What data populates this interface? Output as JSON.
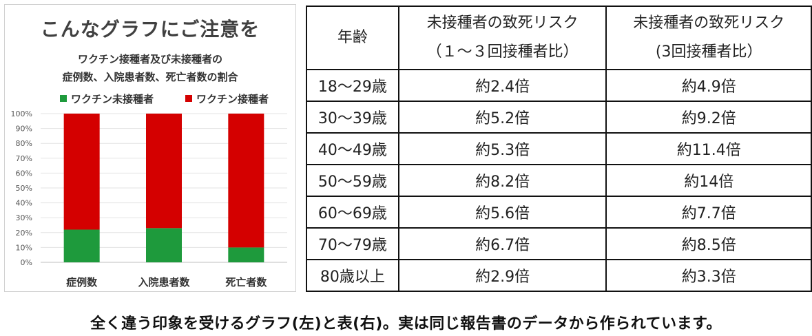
{
  "chart_data": {
    "type": "bar",
    "stacked": true,
    "title": "こんなグラフにご注意を",
    "subtitle_line1": "ワクチン接種者及び未接種者の",
    "subtitle_line2": "症例数、入院患者数、死亡者数の割合",
    "categories": [
      "症例数",
      "入院患者数",
      "死亡者数"
    ],
    "series": [
      {
        "name": "ワクチン未接種者",
        "color": "#1e9a3c",
        "values": [
          22,
          23,
          10
        ]
      },
      {
        "name": "ワクチン接種者",
        "color": "#d40000",
        "values": [
          78,
          77,
          90
        ]
      }
    ],
    "ylim": [
      0,
      100
    ],
    "y_ticks": [
      "0%",
      "10%",
      "20%",
      "30%",
      "40%",
      "50%",
      "60%",
      "70%",
      "80%",
      "90%",
      "100%"
    ],
    "grid": true,
    "legend_position": "top"
  },
  "table": {
    "headers": {
      "age": "年齢",
      "col_a_line1": "未接種者の致死リスク",
      "col_a_line2": "（１～３回接種者比）",
      "col_b_line1": "未接種者の致死リスク",
      "col_b_line2": "(3回接種者比）"
    },
    "rows": [
      {
        "age": "18～29歳",
        "a": "約2.4倍",
        "b": "約4.9倍"
      },
      {
        "age": "30～39歳",
        "a": "約5.2倍",
        "b": "約9.2倍"
      },
      {
        "age": "40～49歳",
        "a": "約5.3倍",
        "b": "約11.4倍"
      },
      {
        "age": "50～59歳",
        "a": "約8.2倍",
        "b": "約14倍"
      },
      {
        "age": "60～69歳",
        "a": "約5.6倍",
        "b": "約7.7倍"
      },
      {
        "age": "70～79歳",
        "a": "約6.7倍",
        "b": "約8.5倍"
      },
      {
        "age": "80歳以上",
        "a": "約2.9倍",
        "b": "約3.3倍"
      }
    ]
  },
  "caption": "全く違う印象を受けるグラフ(左)と表(右)。実は同じ報告書のデータから作られています。"
}
